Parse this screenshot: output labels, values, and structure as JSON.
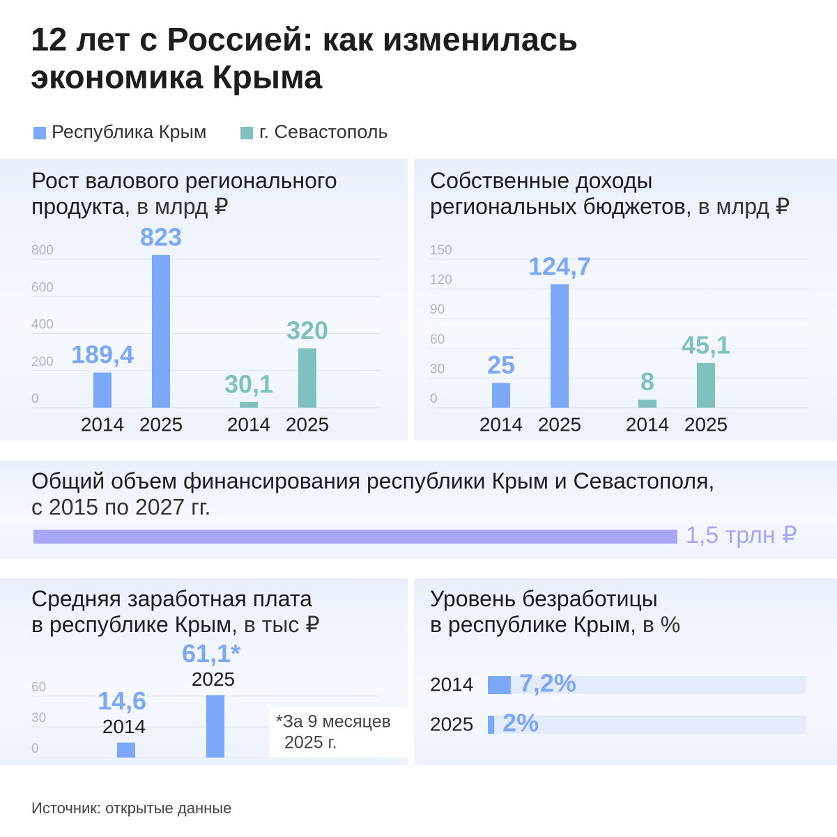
{
  "title": [
    "12 лет с Россией: как изменилась",
    "экономика Крыма"
  ],
  "legend": [
    {
      "name": "Республика Крым",
      "color": "#7ca8f8"
    },
    {
      "name": "г. Севастополь",
      "color": "#7fc1be"
    }
  ],
  "chart_data": [
    {
      "type": "bar",
      "title": [
        "Рост валового регионального",
        "продукта"
      ],
      "unit": ", в млрд ₽",
      "categories": [
        "2014",
        "2025"
      ],
      "series": [
        {
          "color": "#7ca8f8",
          "values": [
            189.4,
            823
          ],
          "value_labels": [
            "189,4",
            "823"
          ]
        },
        {
          "color": "#7fc1be",
          "values": [
            30.1,
            320
          ],
          "value_labels": [
            "30,1",
            "320"
          ]
        }
      ],
      "ylim": [
        0,
        800
      ],
      "yticks": [
        0,
        200,
        400,
        600,
        800
      ],
      "grid": true
    },
    {
      "type": "bar",
      "title": [
        "Собственные доходы",
        "региональных бюджетов"
      ],
      "unit": ", в млрд ₽",
      "categories": [
        "2014",
        "2025"
      ],
      "series": [
        {
          "color": "#7ca8f8",
          "values": [
            25,
            124.7
          ],
          "value_labels": [
            "25",
            "124,7"
          ]
        },
        {
          "color": "#7fc1be",
          "values": [
            8,
            45.1
          ],
          "value_labels": [
            "8",
            "45,1"
          ]
        }
      ],
      "ylim": [
        0,
        150
      ],
      "yticks": [
        0,
        30,
        60,
        90,
        120,
        150
      ],
      "grid": true
    },
    {
      "type": "hbar",
      "title": [
        "Общий объем финансирования республики Крым и Севастополя,"
      ],
      "subtitle": "с 2015 по 2027 гг.",
      "values": [
        1.5
      ],
      "value_labels": [
        "1,5 трлн ₽"
      ],
      "color": "#a8a6f6",
      "xlim": [
        0,
        1.5
      ]
    },
    {
      "type": "bar",
      "title": [
        "Средняя заработная плата",
        "в республике Крым"
      ],
      "unit": ", в тыс ₽",
      "categories": [
        "2014",
        "2025"
      ],
      "values": [
        14.6,
        61.1
      ],
      "value_labels": [
        "14,6",
        "61,1*"
      ],
      "color": "#7ca8f8",
      "ylim": [
        0,
        60
      ],
      "yticks": [
        0,
        30,
        60
      ],
      "grid": true,
      "note": [
        "*За 9 месяцев",
        "2025 г."
      ]
    },
    {
      "type": "hbar",
      "title": [
        "Уровень безработицы",
        "в республике Крым"
      ],
      "unit": ", в %",
      "categories": [
        "2014",
        "2025"
      ],
      "values": [
        7.2,
        2
      ],
      "value_labels": [
        "7,2%",
        "2%"
      ],
      "color": "#7ca8f8",
      "xlim": [
        0,
        100
      ]
    }
  ],
  "source": "Источник: открытые данные"
}
